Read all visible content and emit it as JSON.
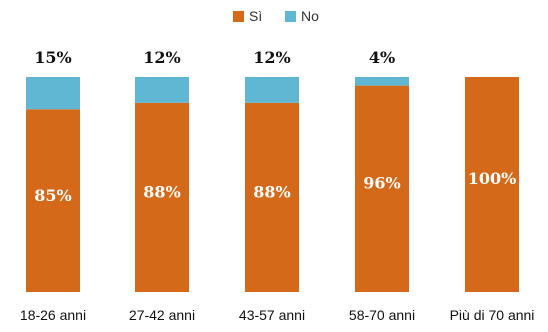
{
  "chart_data": {
    "type": "bar",
    "stacked": true,
    "percent": true,
    "categories": [
      "18-26 anni",
      "27-42 anni",
      "43-57 anni",
      "58-70 anni",
      "Più di 70 anni"
    ],
    "series": [
      {
        "name": "Sì",
        "color": "#d4691a",
        "values": [
          85,
          88,
          88,
          96,
          100
        ]
      },
      {
        "name": "No",
        "color": "#5fb7d3",
        "values": [
          15,
          12,
          12,
          4,
          0
        ]
      }
    ],
    "data_labels": {
      "inside": [
        "85%",
        "88%",
        "88%",
        "96%",
        "100%"
      ],
      "top": [
        "15%",
        "12%",
        "12%",
        "4%",
        ""
      ]
    },
    "legend": {
      "position": "top-center"
    },
    "ylim": [
      0,
      100
    ],
    "grid": false
  }
}
